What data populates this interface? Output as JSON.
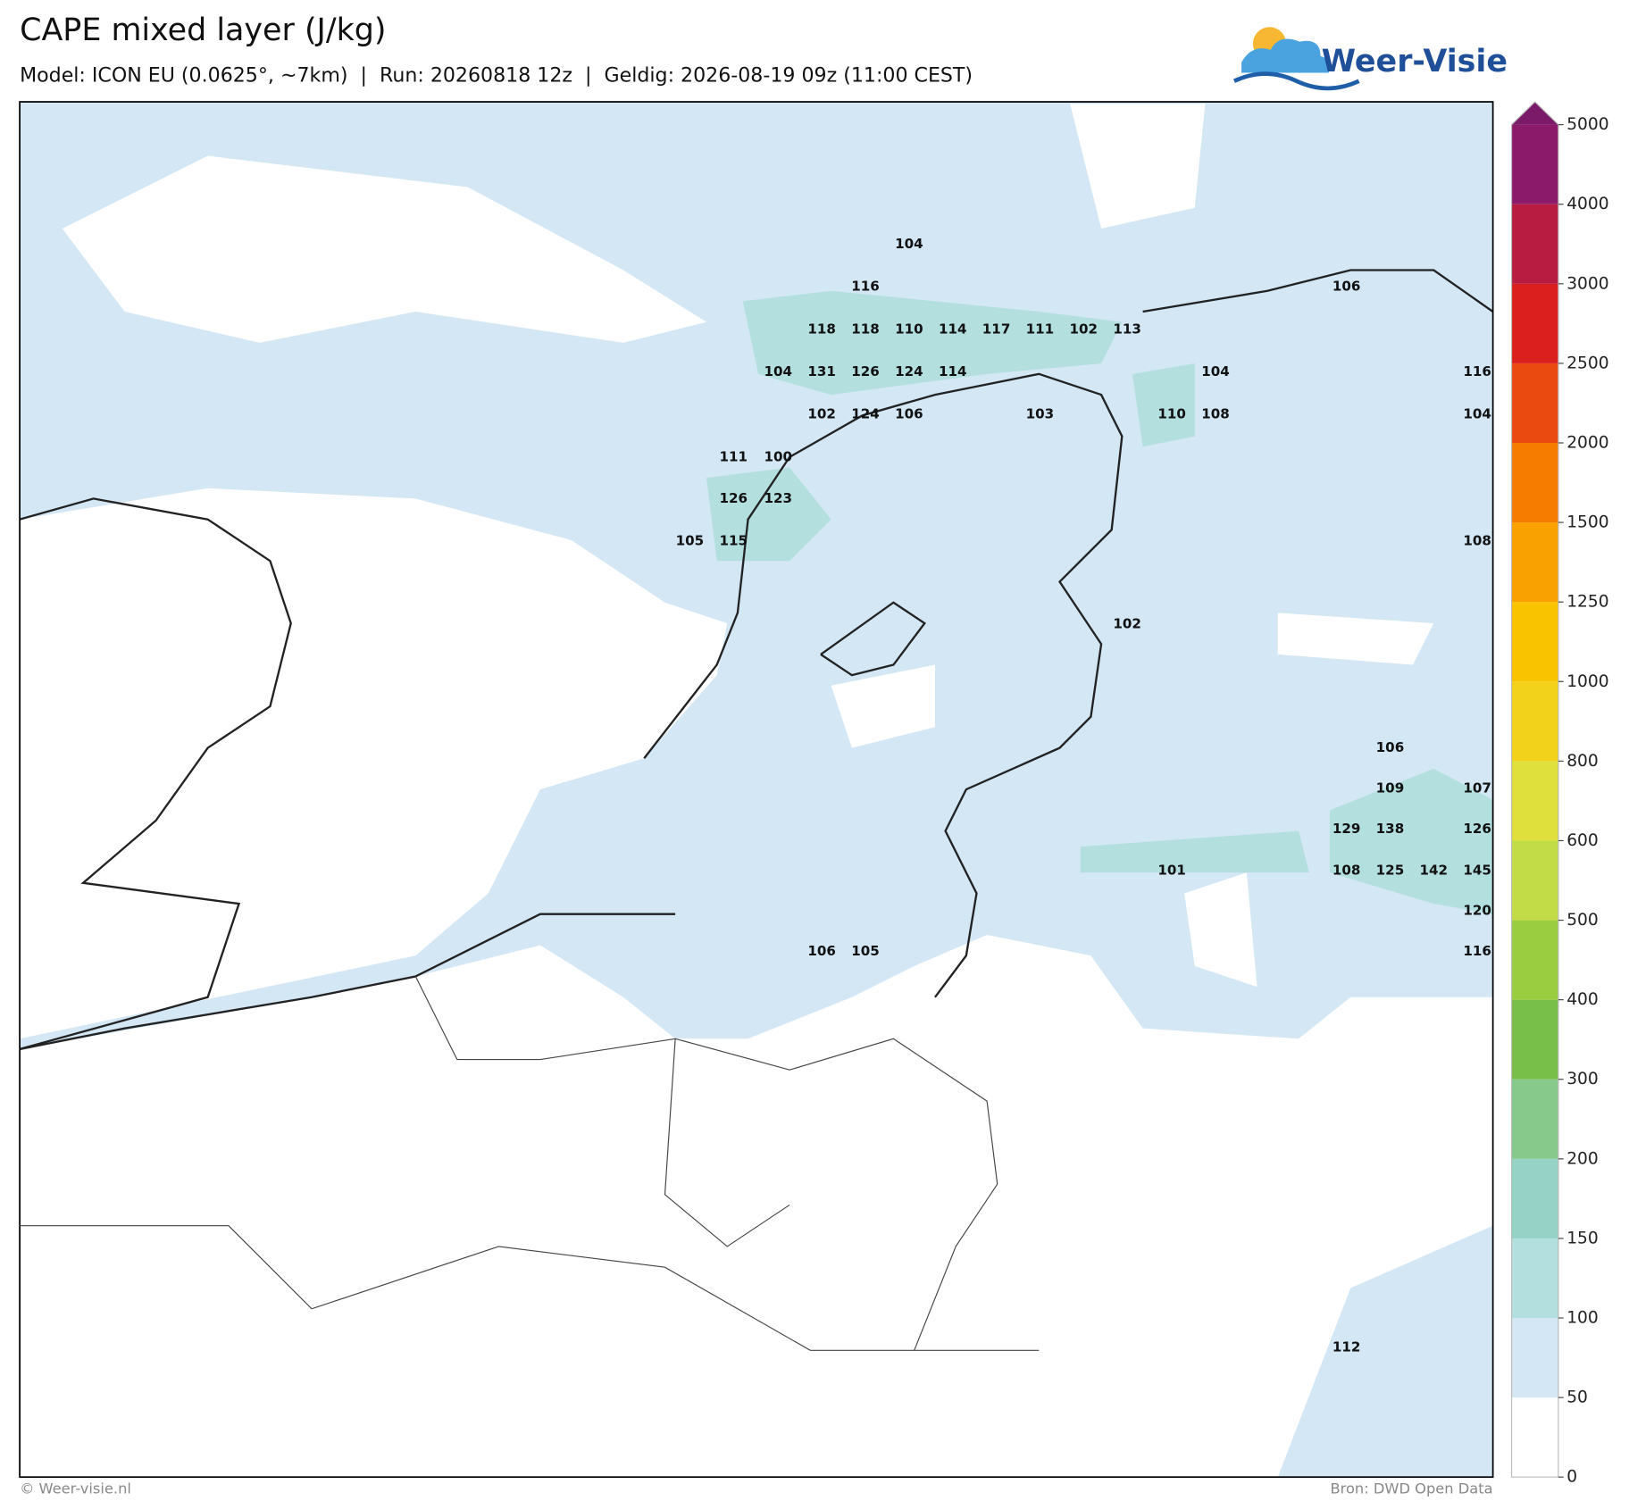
{
  "header": {
    "title": "CAPE mixed layer (J/kg)",
    "subtitle": "Model: ICON EU (0.0625°, ~7km)  |  Run: 20260818 12z  |  Geldig: 2026-08-19 09z (11:00 CEST)",
    "logo": "Weer-Visie"
  },
  "map": {
    "labels": [
      104,
      116,
      106,
      118,
      118,
      110,
      114,
      117,
      111,
      102,
      113,
      104,
      131,
      126,
      124,
      114,
      104,
      116,
      102,
      124,
      106,
      103,
      110,
      108,
      104,
      111,
      100,
      126,
      123,
      105,
      115,
      108,
      102,
      106,
      109,
      107,
      129,
      138,
      126,
      101,
      108,
      125,
      142,
      145,
      120,
      106,
      105,
      116,
      112
    ]
  },
  "colorbar": {
    "ticks": [
      0,
      50,
      100,
      150,
      200,
      300,
      400,
      500,
      600,
      800,
      1000,
      1250,
      1500,
      2000,
      2500,
      3000,
      4000,
      5000
    ],
    "colors": [
      "#ffffff",
      "#d3e7f5",
      "#b4dfdf",
      "#96d3c6",
      "#86c98a",
      "#78bf4a",
      "#9acd3f",
      "#c1dc47",
      "#dfe03b",
      "#f2d21a",
      "#fac300",
      "#f9a100",
      "#f67c00",
      "#ea4a0f",
      "#db1e1e",
      "#b81c40",
      "#8c1a6a"
    ],
    "extend_color": "#7b1a68"
  },
  "footer": {
    "left": "© Weer-visie.nl",
    "right": "Bron: DWD Open Data"
  }
}
